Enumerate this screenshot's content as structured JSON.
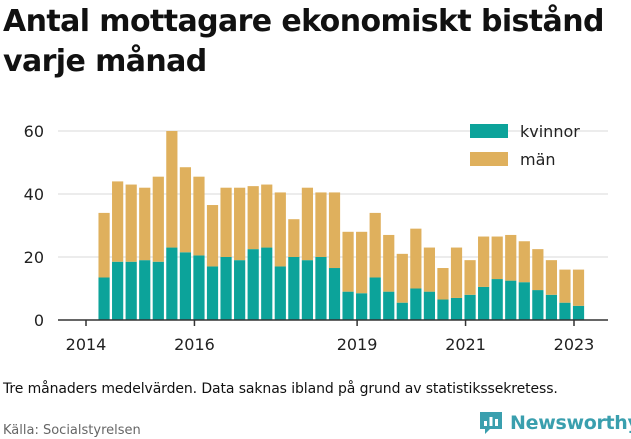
{
  "title": "Antal mottagare ekonomiskt bistånd varje månad",
  "note": "Tre månaders medelvärden. Data saknas ibland på grund av statistikssekretess.",
  "source": "Källa: Socialstyrelsen",
  "brand": {
    "name": "Newsworthy",
    "icon": "newsworthy-logo-icon",
    "color": "#3a9fae"
  },
  "chart_data": {
    "type": "bar",
    "stacked": true,
    "title": "Antal mottagare ekonomiskt bistånd varje månad",
    "xlabel": "",
    "ylabel": "",
    "ylim": [
      0,
      65
    ],
    "yticks": [
      0,
      20,
      40,
      60
    ],
    "xticks": [
      "2014",
      "2016",
      "2019",
      "2021",
      "2023"
    ],
    "grid": true,
    "legend_position": "top-right",
    "periods": [
      "2014-05",
      "2014-08",
      "2014-11",
      "2015-02",
      "2015-05",
      "2015-08",
      "2015-11",
      "2016-02",
      "2016-05",
      "2016-08",
      "2016-11",
      "2017-02",
      "2017-05",
      "2017-08",
      "2017-11",
      "2018-02",
      "2018-05",
      "2018-08",
      "2018-11",
      "2019-02",
      "2019-05",
      "2019-08",
      "2019-11",
      "2020-02",
      "2020-05",
      "2020-08",
      "2020-11",
      "2021-02",
      "2021-05",
      "2021-08",
      "2021-11",
      "2022-02",
      "2022-05",
      "2022-08",
      "2022-11",
      "2023-02"
    ],
    "series": [
      {
        "name": "kvinnor",
        "color": "#0ca39a",
        "values": [
          13.5,
          18.5,
          18.5,
          19,
          18.5,
          23,
          21.5,
          20.5,
          17,
          20,
          19,
          22.5,
          23,
          17,
          20,
          19,
          20,
          16.5,
          9,
          8.5,
          13.5,
          9,
          5.5,
          10,
          9,
          6.5,
          7,
          8,
          10.5,
          13,
          12.5,
          12,
          9.5,
          8,
          5.5,
          4.5
        ]
      },
      {
        "name": "män",
        "color": "#dfb05d",
        "values": [
          20.5,
          25.5,
          24.5,
          23,
          27,
          37,
          27,
          25,
          19.5,
          22,
          23,
          20,
          20,
          23.5,
          12,
          23,
          20.5,
          24,
          19,
          19.5,
          20.5,
          18,
          15.5,
          19,
          14,
          10,
          16,
          11,
          16,
          13.5,
          14.5,
          13,
          13,
          11,
          10.5,
          11.5
        ]
      }
    ]
  }
}
